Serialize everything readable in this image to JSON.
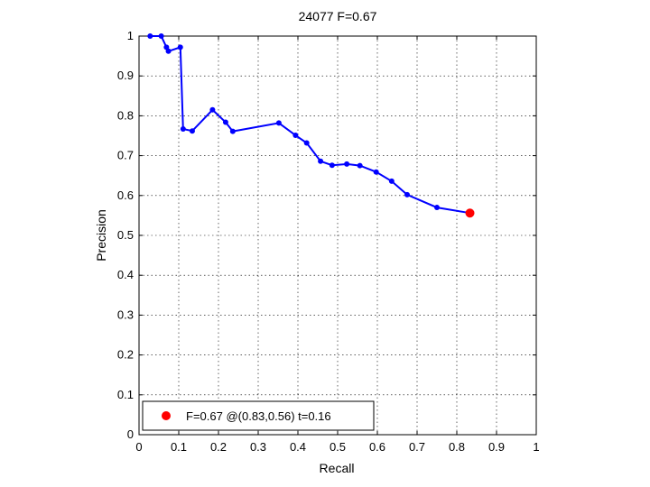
{
  "chart_data": {
    "type": "line",
    "title": "24077 F=0.67",
    "xlabel": "Recall",
    "ylabel": "Precision",
    "xlim": [
      0,
      1
    ],
    "ylim": [
      0,
      1
    ],
    "xticks": [
      "0",
      "0.1",
      "0.2",
      "0.3",
      "0.4",
      "0.5",
      "0.6",
      "0.7",
      "0.8",
      "0.9",
      "1"
    ],
    "yticks": [
      "0",
      "0.1",
      "0.2",
      "0.3",
      "0.4",
      "0.5",
      "0.6",
      "0.7",
      "0.8",
      "0.9",
      "1"
    ],
    "grid": true,
    "series": [
      {
        "color": "#0000ff",
        "marker": "circle",
        "x": [
          0.028,
          0.056,
          0.069,
          0.074,
          0.104,
          0.111,
          0.134,
          0.185,
          0.218,
          0.236,
          0.352,
          0.394,
          0.422,
          0.457,
          0.486,
          0.523,
          0.556,
          0.597,
          0.636,
          0.675,
          0.75,
          0.833
        ],
        "y": [
          1.0,
          1.0,
          0.972,
          0.962,
          0.972,
          0.767,
          0.762,
          0.815,
          0.784,
          0.761,
          0.782,
          0.751,
          0.732,
          0.686,
          0.676,
          0.679,
          0.675,
          0.659,
          0.636,
          0.602,
          0.57,
          0.556
        ]
      }
    ],
    "highlight": {
      "x": 0.833,
      "y": 0.556,
      "color": "#ff0000",
      "marker": "circle"
    },
    "legend": {
      "position": "bottom-left",
      "entries": [
        "F=0.67 @(0.83,0.56) t=0.16"
      ]
    }
  }
}
